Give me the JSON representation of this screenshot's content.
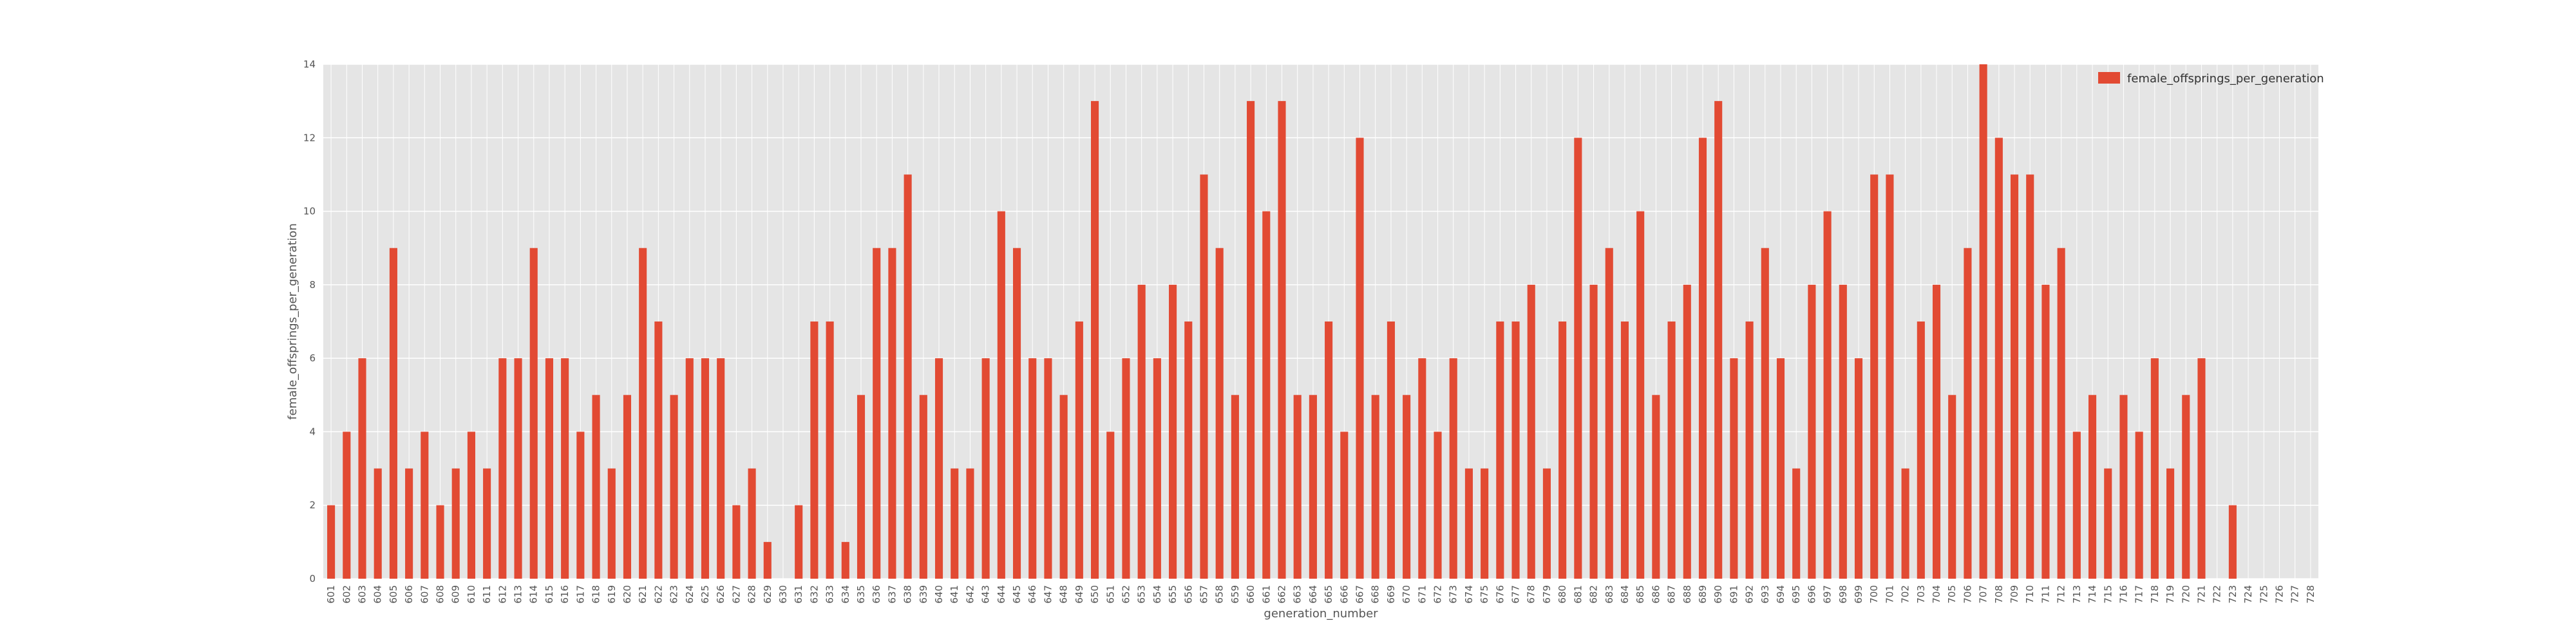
{
  "chart_data": {
    "type": "bar",
    "title": "",
    "xlabel": "generation_number",
    "ylabel": "female_offsprings_per_generation",
    "ylim": [
      0,
      14
    ],
    "yticks": [
      0,
      2,
      4,
      6,
      8,
      10,
      12,
      14
    ],
    "grid": true,
    "legend_position": "top-right",
    "categories": [
      601,
      602,
      603,
      604,
      605,
      606,
      607,
      608,
      609,
      610,
      611,
      612,
      613,
      614,
      615,
      616,
      617,
      618,
      619,
      620,
      621,
      622,
      623,
      624,
      625,
      626,
      627,
      628,
      629,
      630,
      631,
      632,
      633,
      634,
      635,
      636,
      637,
      638,
      639,
      640,
      641,
      642,
      643,
      644,
      645,
      646,
      647,
      648,
      649,
      650,
      651,
      652,
      653,
      654,
      655,
      656,
      657,
      658,
      659,
      660,
      661,
      662,
      663,
      664,
      665,
      666,
      667,
      668,
      669,
      670,
      671,
      672,
      673,
      674,
      675,
      676,
      677,
      678,
      679,
      680,
      681,
      682,
      683,
      684,
      685,
      686,
      687,
      688,
      689,
      690,
      691,
      692,
      693,
      694,
      695,
      696,
      697,
      698,
      699,
      700,
      701,
      702,
      703,
      704,
      705,
      706,
      707,
      708,
      709,
      710,
      711,
      712,
      713,
      714,
      715,
      716,
      717,
      718,
      719,
      720,
      721,
      722,
      723,
      724,
      725,
      726,
      727,
      728
    ],
    "series": [
      {
        "name": "female_offsprings_per_generation",
        "color": "#E24A33",
        "values": [
          2,
          4,
          6,
          3,
          9,
          3,
          4,
          2,
          3,
          4,
          3,
          6,
          6,
          9,
          6,
          6,
          4,
          5,
          3,
          5,
          9,
          7,
          5,
          6,
          6,
          6,
          2,
          3,
          1,
          0,
          2,
          7,
          7,
          1,
          5,
          9,
          9,
          11,
          5,
          6,
          3,
          3,
          6,
          10,
          9,
          6,
          6,
          5,
          7,
          13,
          4,
          6,
          8,
          6,
          8,
          7,
          11,
          9,
          5,
          13,
          10,
          13,
          5,
          5,
          7,
          4,
          12,
          5,
          7,
          5,
          6,
          4,
          6,
          3,
          3,
          7,
          7,
          8,
          3,
          7,
          12,
          8,
          9,
          7,
          10,
          5,
          7,
          8,
          12,
          13,
          6,
          7,
          9,
          6,
          3,
          8,
          10,
          8,
          6,
          11,
          11,
          3,
          7,
          8,
          5,
          9,
          14,
          12,
          11,
          11,
          8,
          9,
          4,
          5,
          3,
          5,
          4,
          6,
          3,
          5,
          6,
          0,
          2,
          0,
          0,
          0,
          0,
          0
        ]
      }
    ]
  },
  "colors": {
    "plot_background": "#E5E5E5",
    "grid": "#FFFFFF",
    "bar": "#E24A33"
  }
}
